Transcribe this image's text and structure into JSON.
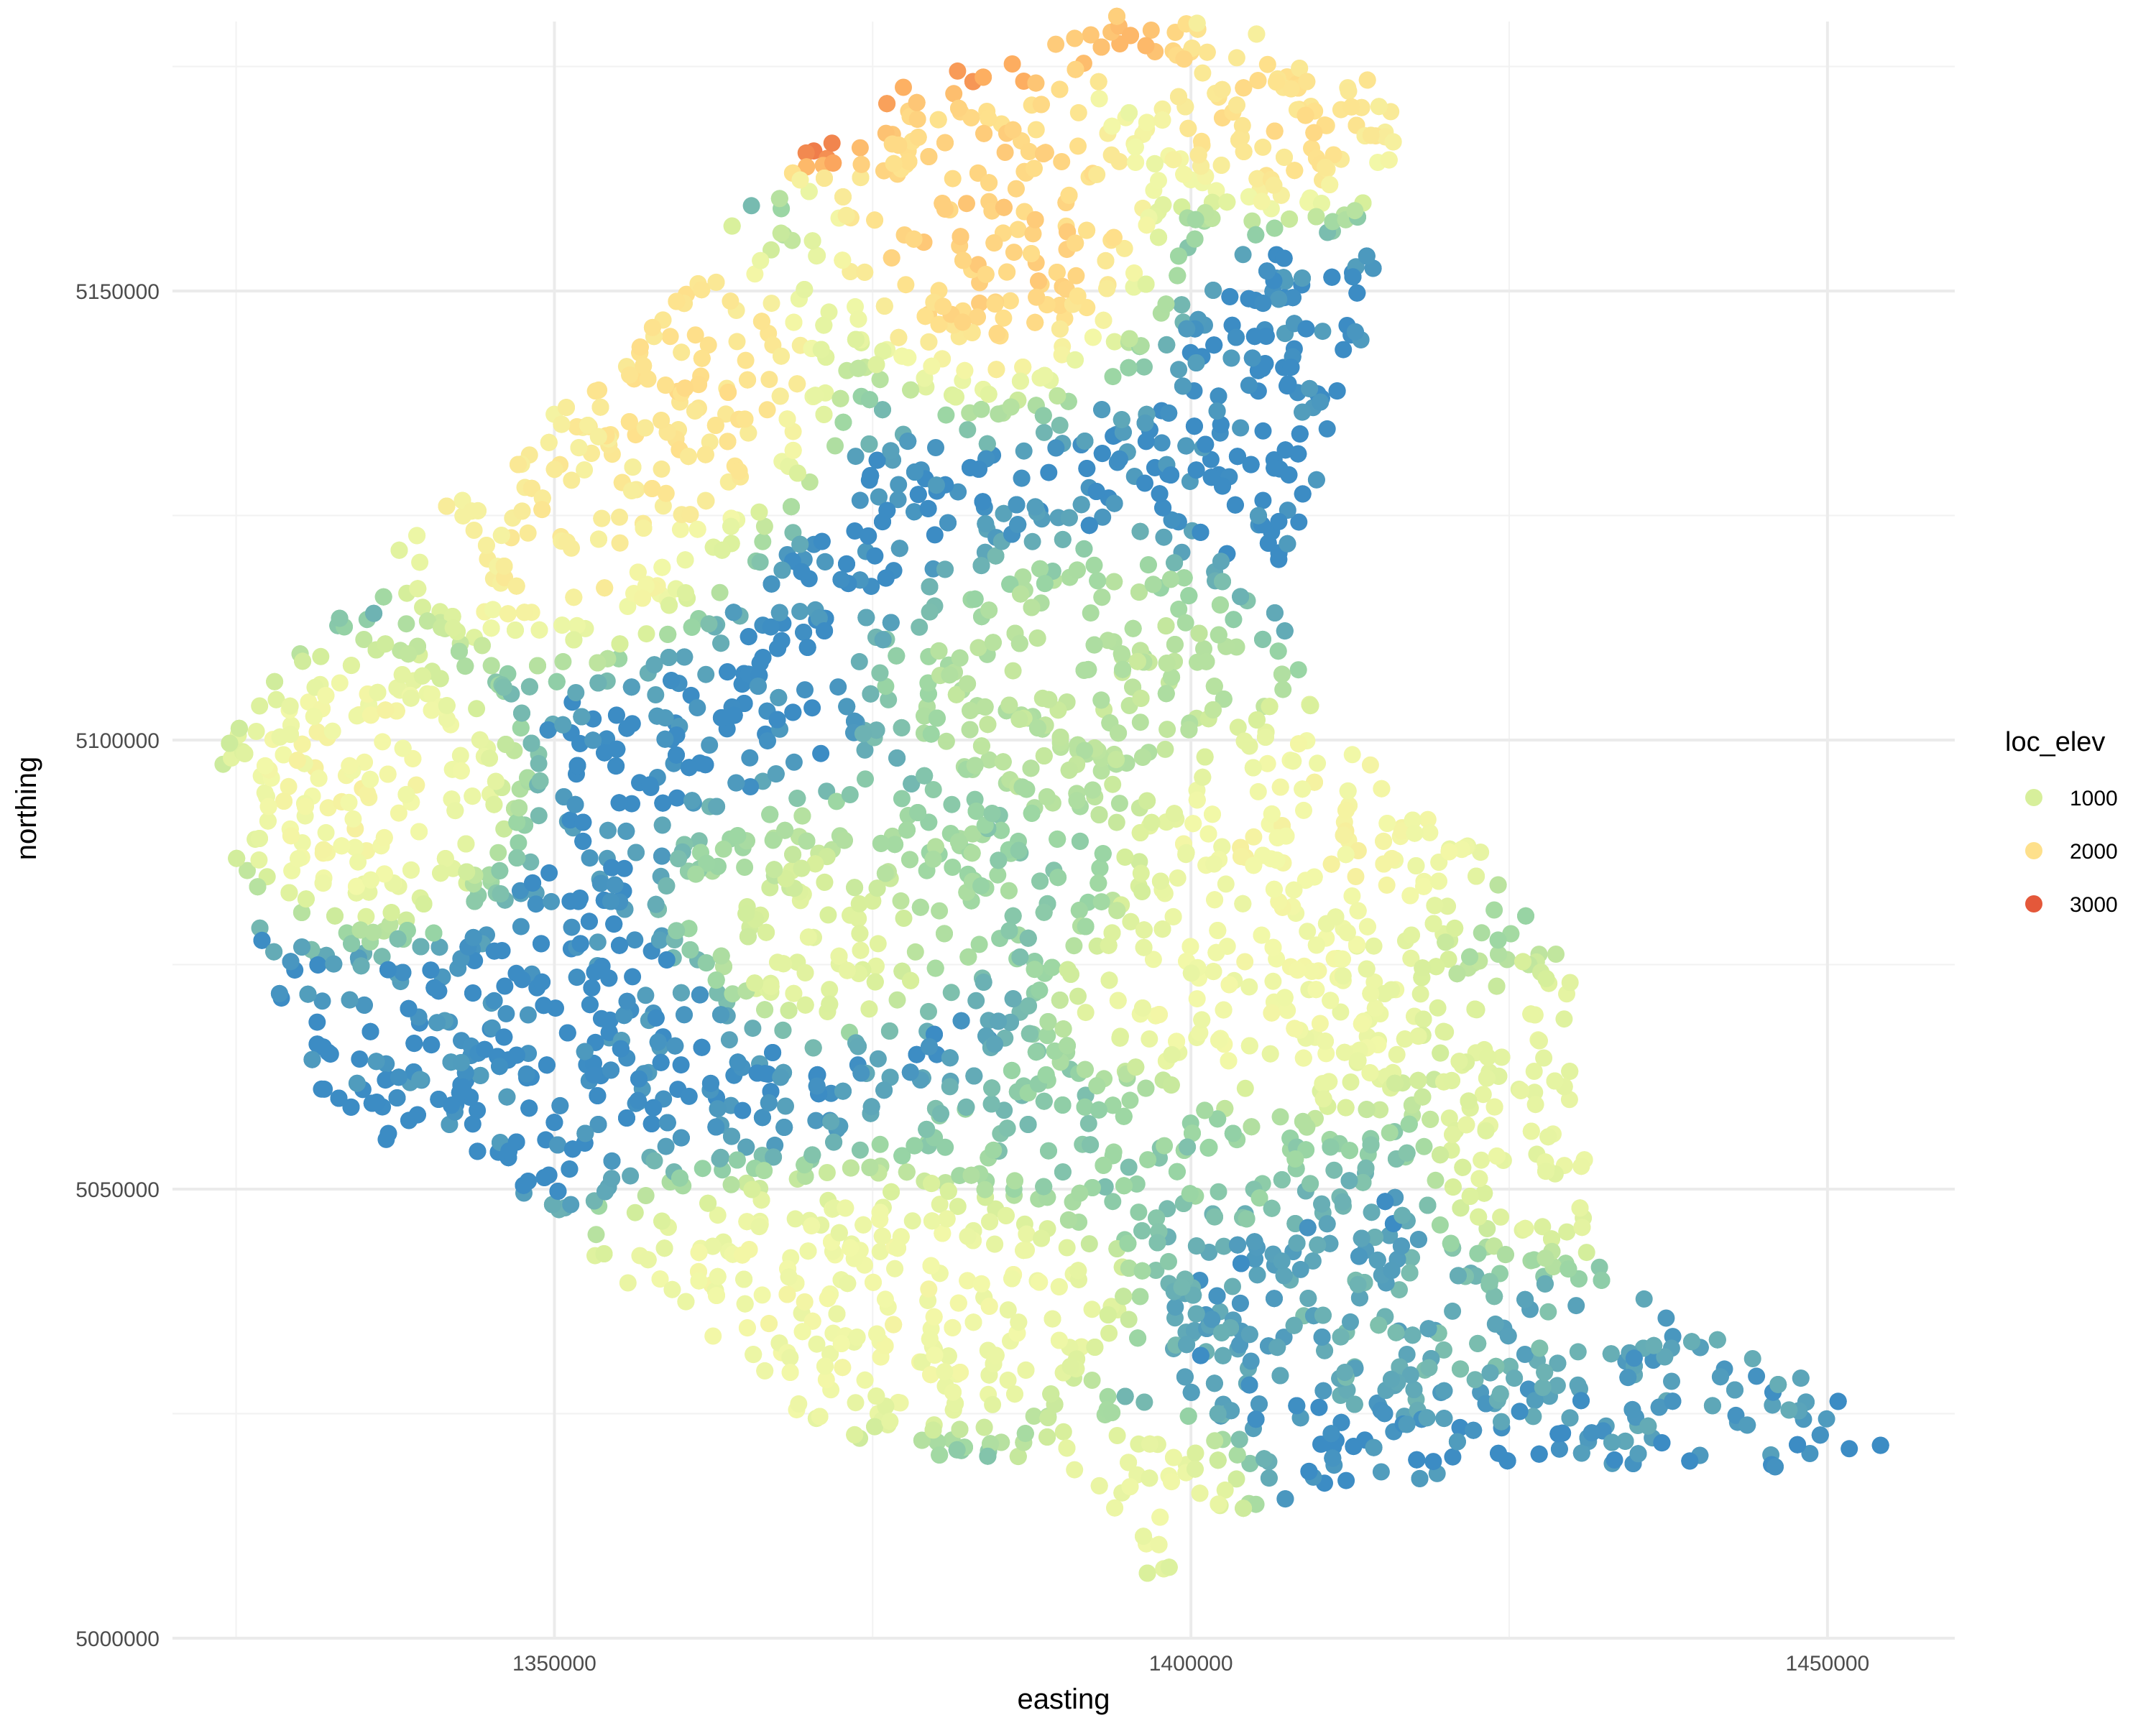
{
  "chart_data": {
    "type": "scatter",
    "title": "",
    "xlabel": "easting",
    "ylabel": "northing",
    "xlim": [
      1320000,
      1460000
    ],
    "ylim": [
      5000000,
      5180000
    ],
    "x_ticks": [
      1350000,
      1400000,
      1450000
    ],
    "x_tick_labels": [
      "1350000",
      "1400000",
      "1450000"
    ],
    "y_ticks": [
      5000000,
      5050000,
      5100000,
      5150000
    ],
    "y_tick_labels": [
      "5000000",
      "5050000",
      "5100000",
      "5150000"
    ],
    "grid": true,
    "legend": {
      "title": "loc_elev",
      "placement": "right",
      "entries": [
        {
          "label": "1000",
          "value": 1000,
          "color": "#d7ef9b"
        },
        {
          "label": "2000",
          "value": 2000,
          "color": "#fee08b"
        },
        {
          "label": "3000",
          "value": 3000,
          "color": "#e4583a"
        }
      ]
    },
    "color_scale": {
      "variable": "loc_elev",
      "stops": [
        {
          "value": 0,
          "color": "#3c8cc4"
        },
        {
          "value": 500,
          "color": "#99d5a4"
        },
        {
          "value": 1000,
          "color": "#d7ef9b"
        },
        {
          "value": 1500,
          "color": "#f2f8a8"
        },
        {
          "value": 2000,
          "color": "#fee08b"
        },
        {
          "value": 2500,
          "color": "#fdae61"
        },
        {
          "value": 3000,
          "color": "#e4583a"
        }
      ]
    },
    "extent": {
      "outline": [
        [
          1322000,
          5099000
        ],
        [
          1337000,
          5121000
        ],
        [
          1353000,
          5140000
        ],
        [
          1368000,
          5164000
        ],
        [
          1377000,
          5173000
        ],
        [
          1395000,
          5181000
        ],
        [
          1410000,
          5178000
        ],
        [
          1417000,
          5171000
        ],
        [
          1413000,
          5142000
        ],
        [
          1407000,
          5116000
        ],
        [
          1410000,
          5102000
        ],
        [
          1423000,
          5088000
        ],
        [
          1430000,
          5075000
        ],
        [
          1430000,
          5062000
        ],
        [
          1433000,
          5040000
        ],
        [
          1449000,
          5029000
        ],
        [
          1455000,
          5021000
        ],
        [
          1447000,
          5018000
        ],
        [
          1426000,
          5020000
        ],
        [
          1405000,
          5014000
        ],
        [
          1397000,
          5006000
        ],
        [
          1392000,
          5018000
        ],
        [
          1372000,
          5022000
        ],
        [
          1357000,
          5038000
        ],
        [
          1347000,
          5050000
        ],
        [
          1332000,
          5058000
        ],
        [
          1327000,
          5076000
        ]
      ]
    },
    "elevation_regions": [
      {
        "center": [
          1370000,
          5170000
        ],
        "spread": [
          4000,
          4000
        ],
        "elev": 3000
      },
      {
        "center": [
          1381000,
          5175000
        ],
        "spread": [
          5000,
          3000
        ],
        "elev": 2700
      },
      {
        "center": [
          1394000,
          5178000
        ],
        "spread": [
          4000,
          3000
        ],
        "elev": 2400
      },
      {
        "center": [
          1384000,
          5158000
        ],
        "spread": [
          7000,
          10000
        ],
        "elev": 2200
      },
      {
        "center": [
          1407000,
          5170000
        ],
        "spread": [
          6000,
          6000
        ],
        "elev": 2000
      },
      {
        "center": [
          1360000,
          5140000
        ],
        "spread": [
          6000,
          9000
        ],
        "elev": 2000
      },
      {
        "center": [
          1350000,
          5125000
        ],
        "spread": [
          7000,
          8000
        ],
        "elev": 1800
      },
      {
        "center": [
          1335000,
          5095000
        ],
        "spread": [
          6000,
          8000
        ],
        "elev": 1600
      },
      {
        "center": [
          1410000,
          5090000
        ],
        "spread": [
          8000,
          8000
        ],
        "elev": 1600
      },
      {
        "center": [
          1405000,
          5070000
        ],
        "spread": [
          8000,
          8000
        ],
        "elev": 1500
      },
      {
        "center": [
          1372000,
          5080000
        ],
        "spread": [
          5000,
          6000
        ],
        "elev": 1500
      },
      {
        "center": [
          1380000,
          5038000
        ],
        "spread": [
          8000,
          8000
        ],
        "elev": 1500
      },
      {
        "center": [
          1365000,
          5035000
        ],
        "spread": [
          8000,
          8000
        ],
        "elev": 1500
      },
      {
        "center": [
          1395000,
          5015000
        ],
        "spread": [
          5000,
          5000
        ],
        "elev": 1400
      },
      {
        "center": [
          1428000,
          5058000
        ],
        "spread": [
          5000,
          10000
        ],
        "elev": 1300
      },
      {
        "center": [
          1392000,
          5105000
        ],
        "spread": [
          8000,
          8000
        ],
        "elev": 800
      },
      {
        "center": [
          1375000,
          5083000
        ],
        "spread": [
          8000,
          6000
        ],
        "elev": 600
      },
      {
        "center": [
          1395000,
          5055000
        ],
        "spread": [
          10000,
          6000
        ],
        "elev": 450
      },
      {
        "center": [
          1420000,
          5035000
        ],
        "spread": [
          10000,
          5000
        ],
        "elev": 250
      },
      {
        "center": [
          1440000,
          5028000
        ],
        "spread": [
          8000,
          4000
        ],
        "elev": 120
      },
      {
        "center": [
          1452000,
          5021000
        ],
        "spread": [
          3000,
          2000
        ],
        "elev": 50
      }
    ]
  }
}
